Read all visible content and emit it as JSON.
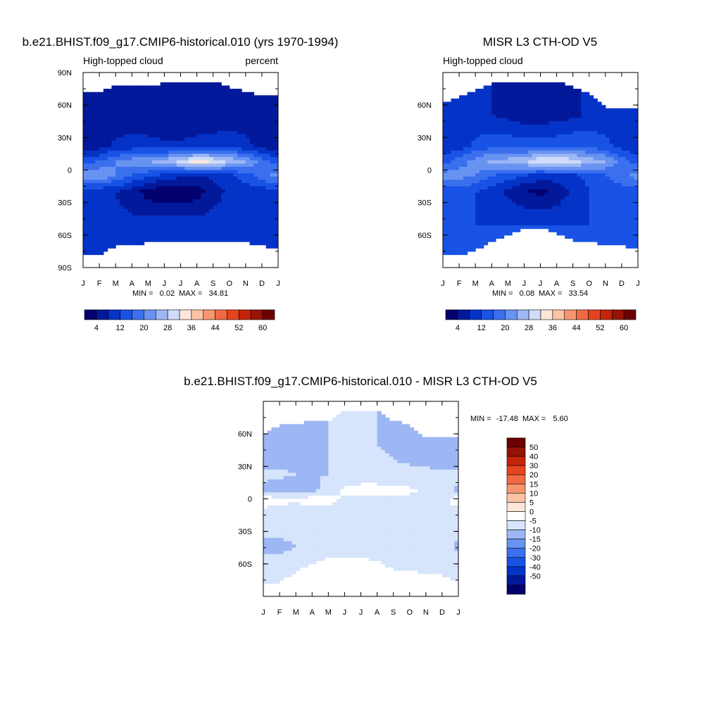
{
  "colors": {
    "cmap_abs": [
      "#03006d",
      "#02199b",
      "#0433c8",
      "#1853e6",
      "#3a70ee",
      "#6893f1",
      "#9db7f4",
      "#cfdcf9",
      "#fde6d9",
      "#fbc3a4",
      "#f7956f",
      "#f26a43",
      "#e64420",
      "#c42409",
      "#971305",
      "#6d0000"
    ],
    "cmap_diff": [
      "#03006d",
      "#02199b",
      "#0433c8",
      "#1853e6",
      "#3a70ee",
      "#6893f1",
      "#9db7f4",
      "#d6e5fb",
      "#ffffff",
      "#fde6d9",
      "#fbc3a4",
      "#f7956f",
      "#f26a43",
      "#e64420",
      "#c42409",
      "#971305",
      "#6d0000"
    ]
  },
  "chart_data": [
    {
      "id": "model",
      "type": "heatmap",
      "title": "b.e21.BHIST.f09_g17.CMIP6-historical.010 (yrs 1970-1994)",
      "left_label": "High-topped cloud",
      "right_label": "percent",
      "x_ticks": [
        "J",
        "F",
        "M",
        "A",
        "M",
        "J",
        "J",
        "A",
        "S",
        "O",
        "N",
        "D",
        "J"
      ],
      "y_ticks": [
        "90N",
        "60N",
        "30N",
        "0",
        "30S",
        "60S",
        "90S"
      ],
      "y_tick_values": [
        90,
        60,
        30,
        0,
        -30,
        -60,
        -90
      ],
      "ylim": [
        -90,
        90
      ],
      "min_label": "MIN =",
      "min_value": "0.02",
      "max_label": "MAX =",
      "max_value": "34.81",
      "colorbar_labels": [
        "4",
        "12",
        "20",
        "28",
        "36",
        "44",
        "52",
        "60"
      ],
      "colorbar_levels": [
        0,
        4,
        8,
        12,
        16,
        20,
        24,
        28,
        32,
        36,
        40,
        44,
        48,
        52,
        56,
        60,
        64
      ],
      "north_extent_lat": [
        72,
        72,
        78,
        78,
        78,
        80,
        82,
        82,
        82,
        76,
        72,
        68,
        68
      ],
      "south_extent_lat": [
        -78,
        -78,
        -70,
        -69,
        -67,
        -67,
        -66,
        -66,
        -66,
        -66,
        -67,
        -70,
        -72
      ],
      "field": [
        {
          "lat": 50,
          "values": [
            6,
            6,
            5,
            5,
            4,
            4,
            4,
            4,
            4,
            5,
            6,
            6,
            6
          ]
        },
        {
          "lat": 22,
          "values": [
            4,
            6,
            9,
            10,
            10,
            9,
            9,
            10,
            11,
            11,
            9,
            7,
            4
          ]
        },
        {
          "lat": 8,
          "values": [
            14,
            16,
            20,
            22,
            24,
            26,
            30,
            35,
            32,
            28,
            24,
            18,
            14
          ]
        },
        {
          "lat": -5,
          "values": [
            22,
            24,
            20,
            16,
            13,
            11,
            9,
            8,
            9,
            11,
            14,
            18,
            22
          ]
        },
        {
          "lat": -20,
          "values": [
            10,
            9,
            8,
            6,
            2,
            1,
            1,
            2,
            6,
            9,
            10,
            10,
            10
          ]
        },
        {
          "lat": -50,
          "values": [
            9,
            9,
            9,
            9,
            10,
            10,
            10,
            10,
            10,
            10,
            9,
            9,
            9
          ]
        }
      ]
    },
    {
      "id": "obs",
      "type": "heatmap",
      "title": "MISR L3 CTH-OD V5",
      "left_label": "High-topped cloud",
      "right_label": "",
      "x_ticks": [
        "J",
        "F",
        "M",
        "A",
        "M",
        "J",
        "J",
        "A",
        "S",
        "O",
        "N",
        "D",
        "J"
      ],
      "y_ticks": [
        "60N",
        "30N",
        "0",
        "30S",
        "60S"
      ],
      "y_tick_values": [
        60,
        30,
        0,
        -30,
        -60
      ],
      "ylim": [
        -90,
        90
      ],
      "min_label": "MIN =",
      "min_value": "0.08",
      "max_label": "MAX =",
      "max_value": "33.54",
      "colorbar_labels": [
        "4",
        "12",
        "20",
        "28",
        "36",
        "44",
        "52",
        "60"
      ],
      "colorbar_levels": [
        0,
        4,
        8,
        12,
        16,
        20,
        24,
        28,
        32,
        36,
        40,
        44,
        48,
        52,
        56,
        60,
        64
      ],
      "north_extent_lat": [
        62,
        68,
        73,
        80,
        80,
        80,
        82,
        82,
        76,
        70,
        57,
        57,
        57
      ],
      "south_extent_lat": [
        -78,
        -78,
        -74,
        -66,
        -60,
        -53,
        -53,
        -58,
        -65,
        -67,
        -68,
        -70,
        -72
      ],
      "field": [
        {
          "lat": 50,
          "values": [
            10,
            10,
            9,
            8,
            7,
            6,
            6,
            6,
            7,
            9,
            10,
            10,
            10
          ]
        },
        {
          "lat": 22,
          "values": [
            8,
            10,
            13,
            15,
            15,
            14,
            14,
            15,
            16,
            15,
            13,
            11,
            8
          ]
        },
        {
          "lat": 8,
          "values": [
            14,
            18,
            22,
            25,
            26,
            28,
            32,
            33,
            30,
            27,
            24,
            18,
            14
          ]
        },
        {
          "lat": -5,
          "values": [
            22,
            22,
            20,
            16,
            14,
            12,
            10,
            10,
            11,
            13,
            16,
            19,
            22
          ]
        },
        {
          "lat": -20,
          "values": [
            14,
            13,
            12,
            10,
            7,
            4,
            3,
            5,
            9,
            12,
            13,
            14,
            14
          ]
        },
        {
          "lat": -50,
          "values": [
            13,
            13,
            12,
            12,
            12,
            12,
            12,
            12,
            12,
            12,
            13,
            13,
            13
          ]
        }
      ]
    },
    {
      "id": "diff",
      "type": "heatmap",
      "title": "b.e21.BHIST.f09_g17.CMIP6-historical.010 - MISR L3 CTH-OD V5",
      "x_ticks": [
        "J",
        "F",
        "M",
        "A",
        "M",
        "J",
        "J",
        "A",
        "S",
        "O",
        "N",
        "D",
        "J"
      ],
      "y_ticks": [
        "60N",
        "30N",
        "0",
        "30S",
        "60S"
      ],
      "y_tick_values": [
        60,
        30,
        0,
        -30,
        -60
      ],
      "ylim": [
        -90,
        90
      ],
      "min_label": "MIN =",
      "min_value": "-17.48",
      "max_label": "MAX =",
      "max_value": "5.60",
      "colorbar_labels": [
        "50",
        "40",
        "30",
        "20",
        "15",
        "10",
        "5",
        "0",
        "-5",
        "-10",
        "-15",
        "-20",
        "-30",
        "-40",
        "-50"
      ],
      "colorbar_levels": [
        -60,
        -50,
        -40,
        -30,
        -20,
        -15,
        -10,
        -5,
        0,
        5,
        10,
        15,
        20,
        30,
        40,
        50,
        60
      ],
      "north_extent_lat": [
        60,
        68,
        68,
        72,
        72,
        82,
        82,
        82,
        72,
        68,
        57,
        57,
        57
      ],
      "south_extent_lat": [
        -78,
        -77,
        -67,
        -60,
        -53,
        -53,
        -53,
        -57,
        -65,
        -67,
        -68,
        -70,
        -76
      ],
      "field": [
        {
          "lat": 50,
          "values": [
            -9,
            -9,
            -7,
            -6,
            -5,
            -5,
            -4,
            -5,
            -6,
            -7,
            -8,
            -9,
            -9
          ]
        },
        {
          "lat": 22,
          "values": [
            -4,
            -4,
            -5,
            -5,
            -5,
            -4,
            -3,
            -3,
            -4,
            -4,
            -4,
            -4,
            -4
          ]
        },
        {
          "lat": 8,
          "values": [
            -6,
            -8,
            -9,
            -7,
            -2,
            1,
            2,
            2,
            2,
            1,
            -1,
            -3,
            -6
          ]
        },
        {
          "lat": 0,
          "values": [
            2,
            1,
            1,
            2,
            2,
            -1,
            -2,
            -2,
            -1,
            -1,
            -1,
            -1,
            2
          ]
        },
        {
          "lat": -20,
          "values": [
            -3,
            -3,
            -4,
            -4,
            -5,
            -4,
            -3,
            -3,
            -3,
            -3,
            -3,
            -3,
            -3
          ]
        },
        {
          "lat": -45,
          "values": [
            -6,
            -6,
            -5,
            -4,
            -4,
            -3,
            -3,
            -3,
            -3,
            -3,
            -3,
            -3,
            -6
          ]
        },
        {
          "lat": -60,
          "values": [
            -3,
            -3,
            -3,
            -3,
            -3,
            -3,
            -3,
            -3,
            -3,
            -3,
            -3,
            -3,
            -3
          ]
        }
      ]
    }
  ]
}
